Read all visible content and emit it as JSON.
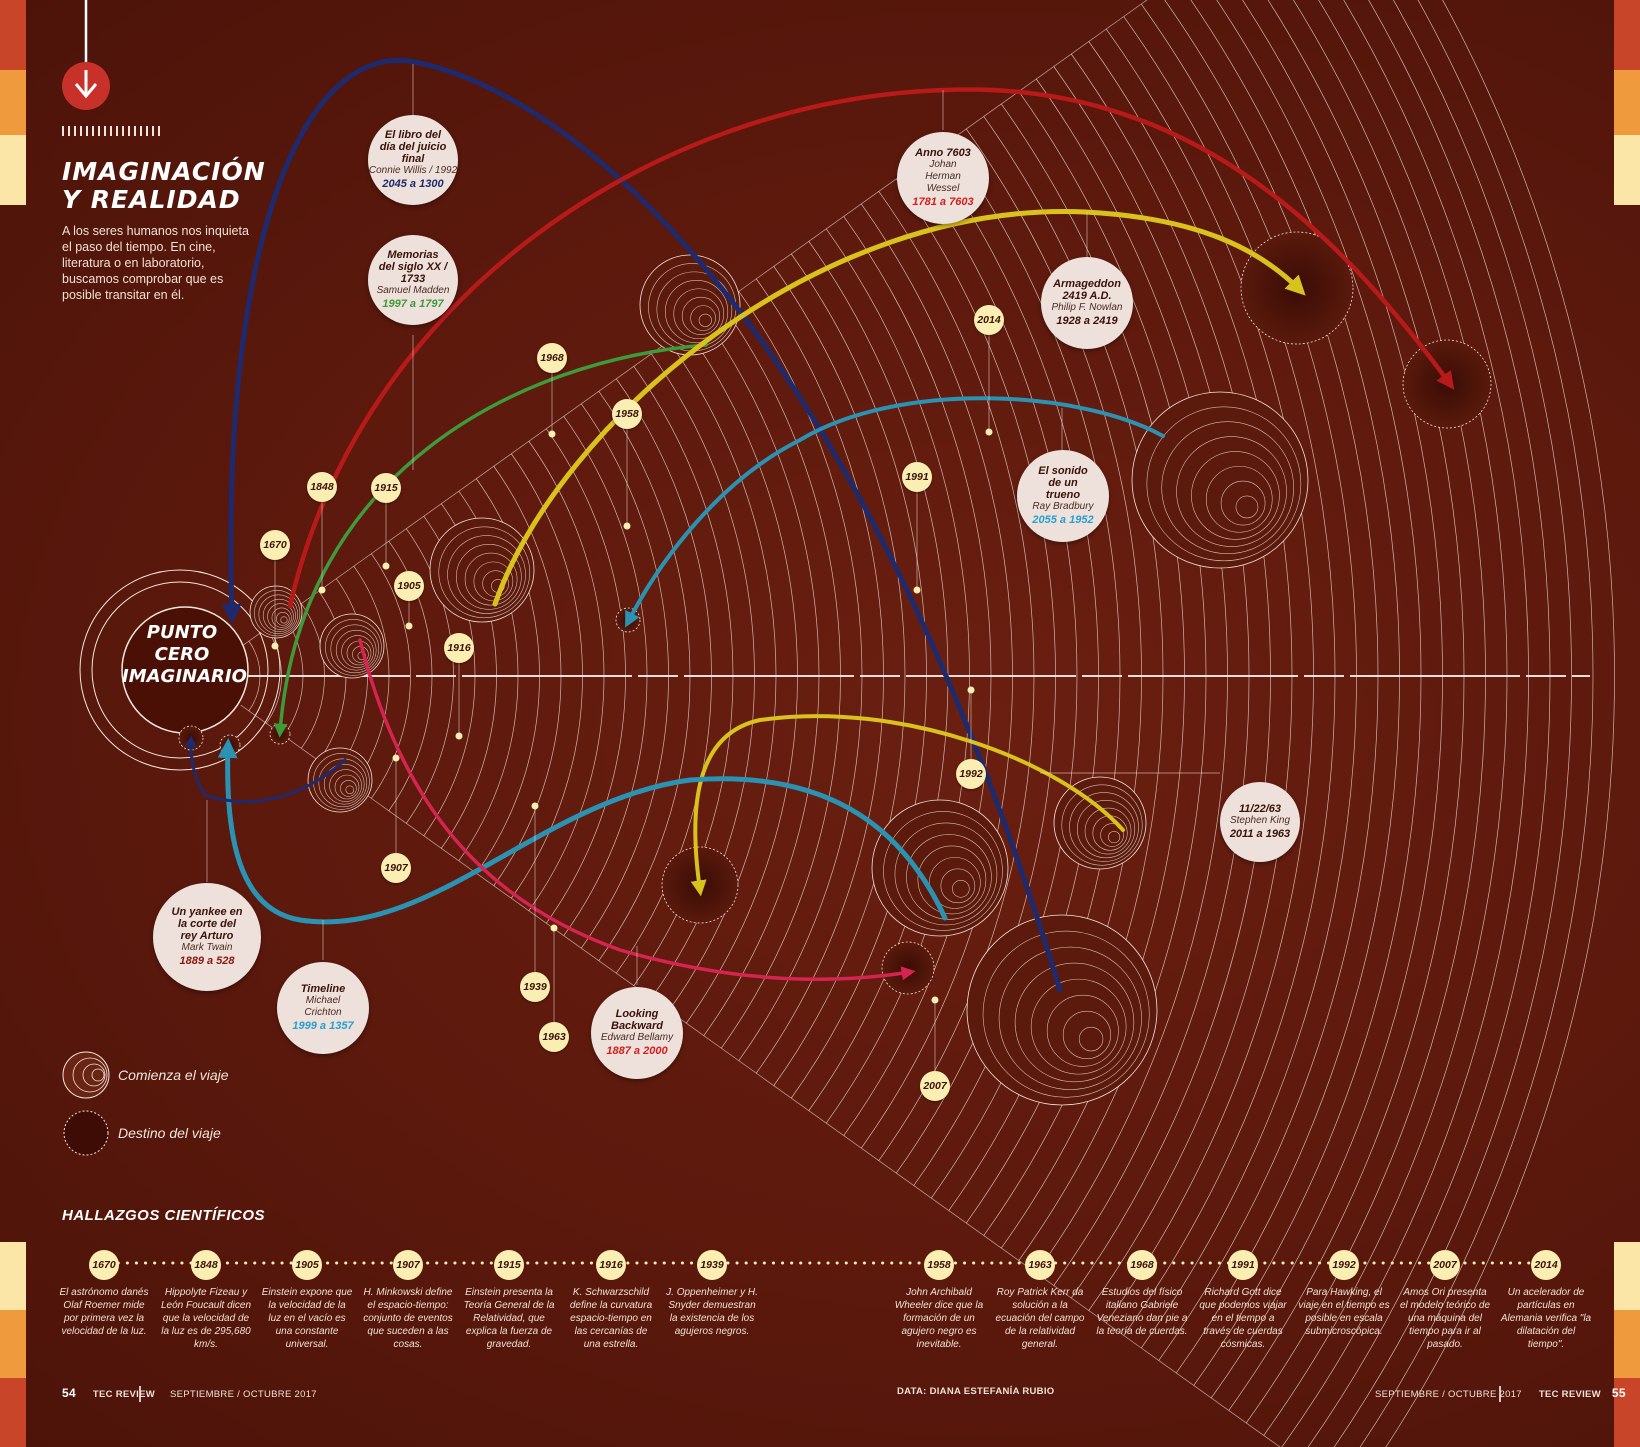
{
  "header": {
    "title_line1": "IMAGINACIÓN",
    "title_line2": "Y REALIDAD",
    "intro": "A los seres humanos nos inquieta el paso del tiempo. En cine, literatura o en laboratorio, buscamos comprobar que es posible transitar en él."
  },
  "center": {
    "line1": "PUNTO",
    "line2": "CERO",
    "line3": "IMAGINARIO"
  },
  "colors": {
    "background": "#5e1a0e",
    "navy": "#1e2a6e",
    "red": "#c41e1e",
    "green": "#3f9a3c",
    "yellow": "#d9c21c",
    "teal": "#2a93b3",
    "crimson": "#d62450",
    "dot_yellow": "#fbeeb2"
  },
  "works": [
    {
      "title": "El libro del día del juicio final",
      "author": "Connie Willis / 1992",
      "range": "2045 a 1300",
      "range_color": "#1e2a6e"
    },
    {
      "title": "Memorias del siglo XX / 1733",
      "author": "Samuel Madden",
      "range": "1997 a 1797",
      "range_color": "#3f9a3c"
    },
    {
      "title": "Anno 7603",
      "author": "Johan Herman Wessel",
      "range": "1781 a 7603",
      "range_color": "#d61e1e"
    },
    {
      "title": "Armageddon 2419 A.D.",
      "author": "Philip F. Nowlan",
      "range": "1928 a 2419",
      "range_color": "#3a1208"
    },
    {
      "title": "El sonido de un trueno",
      "author": "Ray Bradbury",
      "range": "2055 a 1952",
      "range_color": "#2a9fcf"
    },
    {
      "title": "11/22/63",
      "author": "Stephen King",
      "range": "2011 a 1963",
      "range_color": "#3a1208"
    },
    {
      "title": "Un yankee en la corte del rey Arturo",
      "author": "Mark Twain",
      "range": "1889 a 528",
      "range_color": "#8a1a10"
    },
    {
      "title": "Timeline",
      "author": "Michael Crichton",
      "range": "1999 a 1357",
      "range_color": "#2a9fcf"
    },
    {
      "title": "Looking Backward",
      "author": "Edward Bellamy",
      "range": "1887 a 2000",
      "range_color": "#d61e1e"
    }
  ],
  "diagram_years": [
    "1968",
    "1958",
    "1848",
    "1915",
    "1670",
    "1905",
    "1916",
    "1991",
    "2014",
    "1992",
    "1907",
    "1939",
    "1963",
    "2007"
  ],
  "legend": {
    "start": "Comienza el viaje",
    "end": "Destino del viaje"
  },
  "hallazgos": {
    "title": "HALLAZGOS CIENTÍFICOS",
    "items": [
      {
        "year": "1670",
        "text": "El astrónomo danés Olaf Roemer mide por primera vez la velocidad de la luz."
      },
      {
        "year": "1848",
        "text": "Hippolyte Fizeau y León Foucault dicen que la velocidad de la luz es de 295,680 km/s."
      },
      {
        "year": "1905",
        "text": "Einstein expone que la velocidad de la luz en el vacío es una constante universal."
      },
      {
        "year": "1907",
        "text": "H. Minkowski define el espacio-tiempo: conjunto de eventos que suceden a las cosas."
      },
      {
        "year": "1915",
        "text": "Einstein presenta la Teoría General de la Relatividad, que explica la fuerza de gravedad."
      },
      {
        "year": "1916",
        "text": "K. Schwarzschild define la curvatura espacio-tiempo en las cercanías de una estrella."
      },
      {
        "year": "1939",
        "text": "J. Oppenheimer y H. Snyder demuestran la existencia de los agujeros negros."
      },
      {
        "year": "1958",
        "text": "John Archibald Wheeler dice que la formación de un agujero negro es inevitable."
      },
      {
        "year": "1963",
        "text": "Roy Patrick Kerr da solución a la ecuación del campo de la relatividad general."
      },
      {
        "year": "1968",
        "text": "Estudios del físico italiano Gabriele Veneziano dan pie a la teoría de cuerdas."
      },
      {
        "year": "1991",
        "text": "Richard Gott dice que podemos viajar en el tiempo a través de cuerdas cósmicas."
      },
      {
        "year": "1992",
        "text": "Para Hawking, el viaje en el tiempo es posible en escala submicroscópica."
      },
      {
        "year": "2007",
        "text": "Amos Ori presenta el modelo teórico de una máquina del tiempo para ir al pasado."
      },
      {
        "year": "2014",
        "text": "Un acelerador de partículas en Alemania verifica \"la dilatación del tiempo\"."
      }
    ]
  },
  "footer": {
    "left_page": "54",
    "left_brand": "TEC REVIEW",
    "left_date": "SEPTIEMBRE / OCTUBRE 2017",
    "credit": "DATA: DIANA ESTEFANÍA RUBIO",
    "right_date": "SEPTIEMBRE / OCTUBRE 2017",
    "right_brand": "TEC REVIEW",
    "right_page": "55"
  }
}
